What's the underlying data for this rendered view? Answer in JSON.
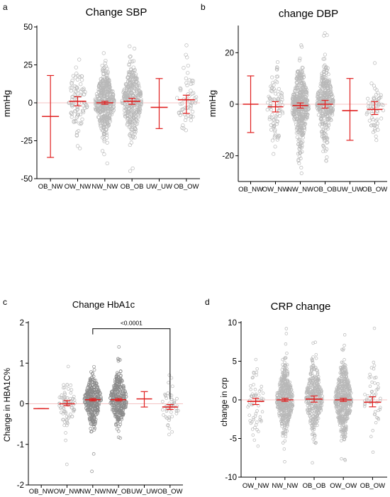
{
  "chart_data": [
    {
      "panel": "a",
      "type": "scatter",
      "title": "Change SBP",
      "ylabel": "mmHg",
      "categories": [
        "OB_NW",
        "OW_NW",
        "NW_NW",
        "OB_OB",
        "UW_UW",
        "OB_OW"
      ],
      "ylim": [
        -50,
        50
      ],
      "yticks": [
        -50,
        -25,
        0,
        25,
        50
      ],
      "groups": [
        {
          "name": "OB_NW",
          "n": 0,
          "mean": -9,
          "lo": -36,
          "hi": 18,
          "spread": 12
        },
        {
          "name": "OW_NW",
          "n": 90,
          "mean": 1,
          "lo": -2,
          "hi": 4,
          "spread": 11
        },
        {
          "name": "NW_NW",
          "n": 420,
          "mean": 0,
          "lo": -1,
          "hi": 1,
          "spread": 10
        },
        {
          "name": "OB_OB",
          "n": 330,
          "mean": 1,
          "lo": -1,
          "hi": 3,
          "spread": 11
        },
        {
          "name": "UW_UW",
          "n": 0,
          "mean": -3,
          "lo": -17,
          "hi": 16,
          "spread": 10
        },
        {
          "name": "OB_OW",
          "n": 60,
          "mean": 2,
          "lo": -7,
          "hi": 5,
          "spread": 13
        }
      ]
    },
    {
      "panel": "b",
      "type": "scatter",
      "title": "change DBP",
      "ylabel": "mmHg",
      "categories": [
        "OB_NW",
        "OW_NW",
        "NW_NW",
        "OB_OB",
        "UW_UW",
        "OB_OW"
      ],
      "ylim": [
        -30,
        30
      ],
      "yticks": [
        -20,
        0,
        20
      ],
      "groups": [
        {
          "name": "OB_NW",
          "n": 0,
          "mean": 0,
          "lo": -11,
          "hi": 11,
          "spread": 7
        },
        {
          "name": "OW_NW",
          "n": 90,
          "mean": -1,
          "lo": -3,
          "hi": 1,
          "spread": 7
        },
        {
          "name": "NW_NW",
          "n": 440,
          "mean": -0.5,
          "lo": -1.5,
          "hi": 0.5,
          "spread": 7
        },
        {
          "name": "OB_OB",
          "n": 340,
          "mean": 0,
          "lo": -1.5,
          "hi": 1.5,
          "spread": 7
        },
        {
          "name": "UW_UW",
          "n": 0,
          "mean": -2.5,
          "lo": -14,
          "hi": 10,
          "spread": 7
        },
        {
          "name": "OB_OW",
          "n": 60,
          "mean": -2,
          "lo": -4,
          "hi": 1,
          "spread": 7
        }
      ]
    },
    {
      "panel": "c",
      "type": "scatter",
      "title": "Change HbA1c",
      "ylabel": "Change in HBA1C%",
      "categories": [
        "OB_NW",
        "OW_NW",
        "NW_NW",
        "NW_OB",
        "UW_UW",
        "OB_OW"
      ],
      "ylim": [
        -2,
        2
      ],
      "yticks": [
        -2,
        -1,
        0,
        1,
        2
      ],
      "annotation": {
        "text": "<0.0001",
        "from": 2,
        "to": 5,
        "y": 1.85,
        "drop_to": 0.12
      },
      "groups": [
        {
          "name": "OB_NW",
          "n": 0,
          "mean": -0.12,
          "lo": -0.12,
          "hi": -0.12,
          "spread": 0.3
        },
        {
          "name": "OW_NW",
          "n": 80,
          "mean": 0.0,
          "lo": -0.05,
          "hi": 0.08,
          "spread": 0.3
        },
        {
          "name": "NW_NW",
          "n": 320,
          "mean": 0.1,
          "lo": 0.07,
          "hi": 0.13,
          "spread": 0.28
        },
        {
          "name": "NW_OB",
          "n": 300,
          "mean": 0.1,
          "lo": 0.07,
          "hi": 0.13,
          "spread": 0.3
        },
        {
          "name": "UW_UW",
          "n": 0,
          "mean": 0.12,
          "lo": -0.08,
          "hi": 0.3,
          "spread": 0.3
        },
        {
          "name": "OB_OW",
          "n": 50,
          "mean": -0.08,
          "lo": -0.14,
          "hi": -0.02,
          "spread": 0.3
        }
      ]
    },
    {
      "panel": "d",
      "type": "scatter",
      "title": "CRP change",
      "ylabel": "change in crp",
      "categories": [
        "OW_NW",
        "NW_NW",
        "OB_OB",
        "OW_OW",
        "OB_OW"
      ],
      "ylim": [
        -10,
        10
      ],
      "yticks": [
        -10,
        -5,
        0,
        5,
        10
      ],
      "groups": [
        {
          "name": "OW_NW",
          "n": 60,
          "mean": -0.2,
          "lo": -0.6,
          "hi": 0.2,
          "spread": 2.5
        },
        {
          "name": "NW_NW",
          "n": 480,
          "mean": 0,
          "lo": -0.2,
          "hi": 0.2,
          "spread": 2.0
        },
        {
          "name": "OB_OB",
          "n": 360,
          "mean": 0.1,
          "lo": -0.3,
          "hi": 0.5,
          "spread": 2.2
        },
        {
          "name": "OW_OW",
          "n": 520,
          "mean": 0,
          "lo": -0.2,
          "hi": 0.2,
          "spread": 2.2
        },
        {
          "name": "OB_OW",
          "n": 50,
          "mean": -0.3,
          "lo": -0.9,
          "hi": 0.4,
          "spread": 2.5
        }
      ]
    }
  ],
  "colors": {
    "points": "#b8b8b8",
    "points_dense": "#8a8a8a",
    "errorbar": "#e02020",
    "axis": "#000000",
    "zero_line": "#f2b0b0"
  }
}
